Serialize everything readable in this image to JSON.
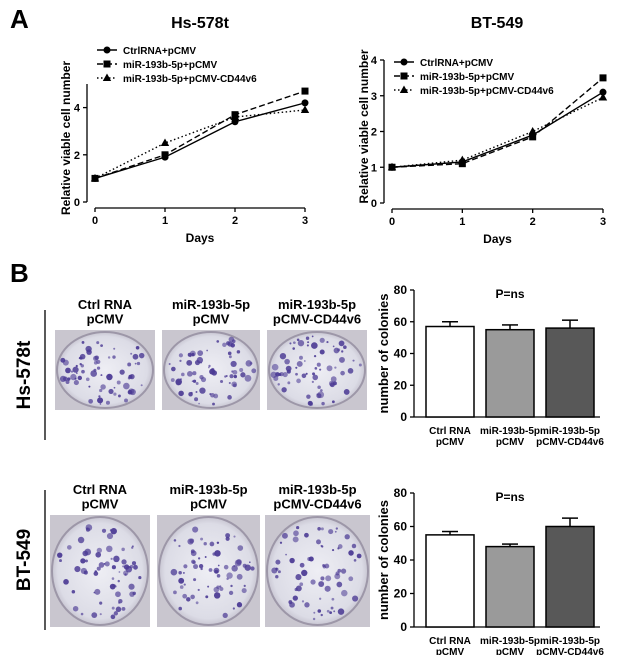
{
  "chart_data": [
    {
      "type": "line",
      "title": "Hs-578t",
      "xlabel": "Days",
      "ylabel": "Relative viable cell number",
      "x": [
        0,
        1,
        2,
        3
      ],
      "xlim": [
        0,
        3
      ],
      "xticks": [
        0,
        1,
        2,
        3
      ],
      "ylim": [
        0,
        5
      ],
      "yticks": [
        0,
        2,
        4
      ],
      "legend": "upper left",
      "series": [
        {
          "name": "CtrlRNA+pCMV",
          "color": "#000000",
          "marker": "circle",
          "line_style": "solid",
          "values": [
            1.0,
            1.9,
            3.4,
            4.2
          ]
        },
        {
          "name": "miR-193b-5p+pCMV",
          "color": "#000000",
          "marker": "square",
          "line_style": "dashed",
          "values": [
            1.0,
            2.0,
            3.7,
            4.7
          ]
        },
        {
          "name": "miR-193b-5p+pCMV-CD44v6",
          "color": "#000000",
          "marker": "triangle",
          "line_style": "dotted",
          "values": [
            1.0,
            2.5,
            3.6,
            3.9
          ]
        }
      ]
    },
    {
      "type": "line",
      "title": "BT-549",
      "xlabel": "Days",
      "ylabel": "Relative viable cell number",
      "x": [
        0,
        1,
        2,
        3
      ],
      "xlim": [
        0,
        3
      ],
      "xticks": [
        0,
        1,
        2,
        3
      ],
      "ylim": [
        0,
        4
      ],
      "yticks": [
        0,
        1,
        2,
        3,
        4
      ],
      "legend": "upper left",
      "series": [
        {
          "name": "CtrlRNA+pCMV",
          "color": "#000000",
          "marker": "circle",
          "line_style": "solid",
          "values": [
            1.0,
            1.15,
            1.9,
            3.1
          ]
        },
        {
          "name": "miR-193b-5p+pCMV",
          "color": "#000000",
          "marker": "square",
          "line_style": "dashed",
          "values": [
            1.0,
            1.1,
            1.85,
            3.5
          ]
        },
        {
          "name": "miR-193b-5p+pCMV-CD44v6",
          "color": "#000000",
          "marker": "triangle",
          "line_style": "dotted",
          "values": [
            1.0,
            1.2,
            2.0,
            2.95
          ]
        }
      ]
    },
    {
      "type": "bar",
      "annotation": "P=ns",
      "ylabel": "number of colonies",
      "categories": [
        "Ctrl RNA\npCMV",
        "miR-193b-5p\npCMV",
        "miR-193b-5p\npCMV-CD44v6"
      ],
      "values": [
        57,
        55,
        56
      ],
      "errors": [
        3,
        3,
        5
      ],
      "colors": [
        "#ffffff",
        "#9a9a9a",
        "#585858"
      ],
      "ylim": [
        0,
        80
      ],
      "yticks": [
        0,
        20,
        40,
        60,
        80
      ]
    },
    {
      "type": "bar",
      "annotation": "P=ns",
      "ylabel": "number of colonies",
      "categories": [
        "Ctrl RNA\npCMV",
        "miR-193b-5p\npCMV",
        "miR-193b-5p\npCMV-CD44v6"
      ],
      "values": [
        55,
        48,
        60
      ],
      "errors": [
        2,
        1.5,
        5
      ],
      "colors": [
        "#ffffff",
        "#9a9a9a",
        "#585858"
      ],
      "ylim": [
        0,
        80
      ],
      "yticks": [
        0,
        20,
        40,
        60,
        80
      ]
    }
  ],
  "panel_labels": [
    "A",
    "B"
  ],
  "row_labels": [
    "Hs-578t",
    "BT-549"
  ],
  "photo_labels": [
    [
      "Ctrl RNA\npCMV",
      "miR-193b-5p\npCMV",
      "miR-193b-5p\npCMV-CD44v6"
    ],
    [
      "Ctrl RNA\npCMV",
      "miR-193b-5p\npCMV",
      "miR-193b-5p\npCMV-CD44v6"
    ]
  ]
}
